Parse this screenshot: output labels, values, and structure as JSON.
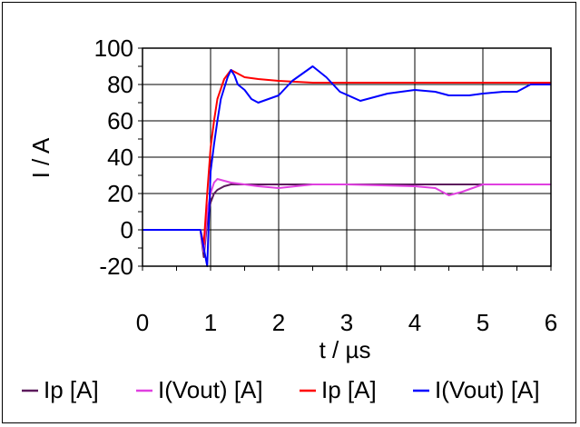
{
  "chart_data": {
    "type": "line",
    "title": "",
    "xlabel": "t / µs",
    "ylabel": "I / A",
    "xlim": [
      0,
      6
    ],
    "ylim": [
      -20,
      100
    ],
    "grid": true,
    "legend_placement": "bottom",
    "x_ticks": [
      "0",
      "1",
      "2",
      "3",
      "4",
      "5",
      "6"
    ],
    "y_ticks": [
      "100",
      "80",
      "60",
      "40",
      "20",
      "0",
      "-20"
    ],
    "series": [
      {
        "name": "Ip [A]",
        "color": "#5c1a5c",
        "x": [
          0,
          0.85,
          0.9,
          0.95,
          1.0,
          1.05,
          1.1,
          1.2,
          1.3,
          1.5,
          1.7,
          2.0,
          2.5,
          3.0,
          4.0,
          5.0,
          6.0
        ],
        "y": [
          0,
          0,
          -15,
          5,
          15,
          20,
          22,
          24,
          25,
          25,
          25,
          25,
          25,
          25,
          25,
          25,
          25
        ]
      },
      {
        "name": "I(Vout) [A]",
        "color": "#e040e0",
        "x": [
          0,
          0.85,
          0.9,
          0.95,
          1.0,
          1.05,
          1.1,
          1.2,
          1.3,
          1.5,
          1.7,
          2.0,
          2.5,
          3.0,
          4.0,
          4.3,
          4.5,
          4.7,
          5.0,
          5.5,
          6.0
        ],
        "y": [
          0,
          0,
          -12,
          10,
          20,
          26,
          28,
          27,
          26,
          25,
          24,
          23,
          25,
          25,
          24,
          23,
          19,
          21,
          25,
          25,
          25
        ]
      },
      {
        "name": "Ip [A]",
        "color": "#ff0000",
        "x": [
          0,
          0.85,
          0.9,
          0.95,
          1.0,
          1.05,
          1.1,
          1.2,
          1.3,
          1.4,
          1.5,
          1.7,
          2.0,
          2.5,
          3.0,
          4.0,
          5.0,
          6.0
        ],
        "y": [
          0,
          0,
          -8,
          20,
          45,
          60,
          72,
          83,
          88,
          86,
          84,
          83,
          82,
          81,
          81,
          81,
          81,
          81
        ]
      },
      {
        "name": "I(Vout) [A]",
        "color": "#0000ff",
        "x": [
          0,
          0.85,
          0.9,
          0.95,
          1.0,
          1.05,
          1.1,
          1.15,
          1.2,
          1.25,
          1.3,
          1.35,
          1.4,
          1.5,
          1.6,
          1.7,
          2.0,
          2.2,
          2.5,
          2.7,
          2.9,
          3.2,
          3.6,
          4.0,
          4.3,
          4.5,
          4.8,
          5.0,
          5.3,
          5.5,
          5.7,
          6.0
        ],
        "y": [
          0,
          0,
          -10,
          -20,
          32,
          47,
          60,
          72,
          78,
          84,
          88,
          85,
          80,
          77,
          72,
          70,
          74,
          82,
          90,
          84,
          76,
          71,
          75,
          77,
          76,
          74,
          74,
          75,
          76,
          76,
          80,
          80
        ]
      }
    ]
  }
}
